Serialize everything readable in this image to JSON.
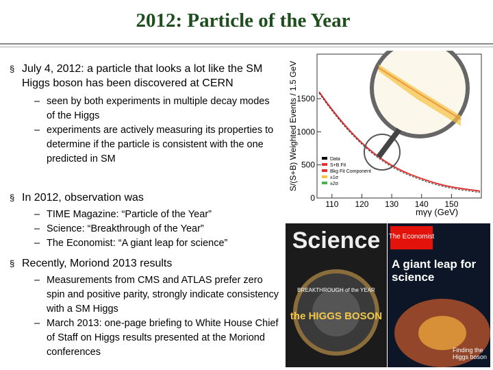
{
  "title": "2012:  Particle of the Year",
  "bullets": [
    {
      "text": "July 4, 2012:  a particle that looks a lot like the SM Higgs boson has been discovered at CERN",
      "subs": [
        "seen by both experiments in multiple decay modes of the Higgs",
        "experiments are actively measuring its properties to determine if the particle is consistent with the one predicted in SM"
      ]
    },
    {
      "text": "In 2012, observation was",
      "subs": [
        "TIME Magazine:   “Particle of the Year”",
        "Science:   “Breakthrough of the Year”",
        "The Economist:  “A giant leap for science”"
      ]
    },
    {
      "text": "Recently, Moriond 2013 results",
      "subs": [
        "Measurements from CMS and ATLAS prefer zero spin and positive parity, strongly indicate consistency with a SM Higgs",
        "March 2013:  one-page briefing to White House Chief of Staff on Higgs results presented at the Moriond conferences"
      ]
    }
  ],
  "figure": {
    "y_label": "S/(S+B) Weighted Events / 1.5 GeV",
    "x_label": "mγγ (GeV)",
    "yticks": [
      0,
      500,
      1000,
      1500
    ],
    "xticks": [
      110,
      120,
      130,
      140,
      150
    ],
    "legend": [
      "Data",
      "S+B Fit",
      "Bkg Fit Component",
      "±1σ",
      "±2σ"
    ]
  },
  "covers": {
    "science": {
      "masthead": "Science",
      "banner": "BREAKTHROUGH of the YEAR",
      "headline": "the HIGGS BOSON"
    },
    "economist": {
      "masthead": "The Economist",
      "headline": "A giant leap for science",
      "footer": "Finding the Higgs boson"
    }
  }
}
